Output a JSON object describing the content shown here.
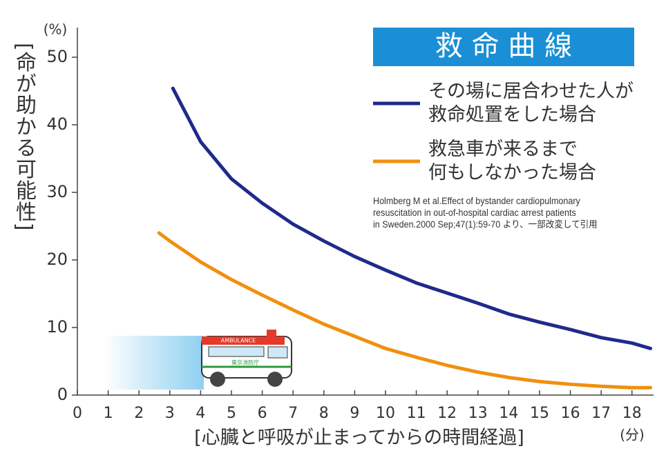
{
  "chart_data": {
    "type": "line",
    "title": "救 命 曲 線",
    "y_label": "[命が助かる可能性]",
    "x_label": "[心臓と呼吸が止まってからの時間経過]",
    "y_unit": "(%)",
    "x_unit": "(分)",
    "citation": "Holmberg M et al.Effect of bystander  cardiopulmonary\nresuscitation in out-of-hospital cardiac arrest patients\nin Sweden.2000 Sep;47(1):59-70  より、一部改変して引用",
    "ambulance_label": "AMBULANCE",
    "ambulance_text": "東京消防庁",
    "series": [
      {
        "name": "その場に居合わせた人が\n救命処置をした場合",
        "color": "#1f2a8c",
        "x": [
          3.1,
          4,
          5,
          6,
          7,
          8,
          9,
          10,
          11,
          12,
          13,
          14,
          15,
          16,
          17,
          18,
          18.6
        ],
        "values": [
          45.4,
          37.5,
          32,
          28.4,
          25.3,
          22.8,
          20.5,
          18.5,
          16.6,
          15.1,
          13.6,
          12,
          10.8,
          9.7,
          8.5,
          7.7,
          6.9
        ]
      },
      {
        "name": "救急車が来るまで\n何もしなかった場合",
        "color": "#f0900f",
        "x": [
          2.65,
          3,
          4,
          5,
          6,
          7,
          8,
          9,
          10,
          11,
          12,
          13,
          14,
          15,
          16,
          17,
          18,
          18.6
        ],
        "values": [
          24,
          22.8,
          19.7,
          17.1,
          14.8,
          12.6,
          10.5,
          8.7,
          6.9,
          5.6,
          4.4,
          3.4,
          2.6,
          2,
          1.6,
          1.3,
          1.1,
          1.1
        ]
      }
    ],
    "xlim": [
      0,
      18.7
    ],
    "ylim": [
      0,
      50
    ],
    "xticks": [
      0,
      1,
      2,
      3,
      4,
      5,
      6,
      7,
      8,
      9,
      10,
      11,
      12,
      13,
      14,
      15,
      16,
      17,
      18
    ],
    "yticks": [
      0,
      10,
      20,
      30,
      40,
      50
    ],
    "grid": false
  }
}
